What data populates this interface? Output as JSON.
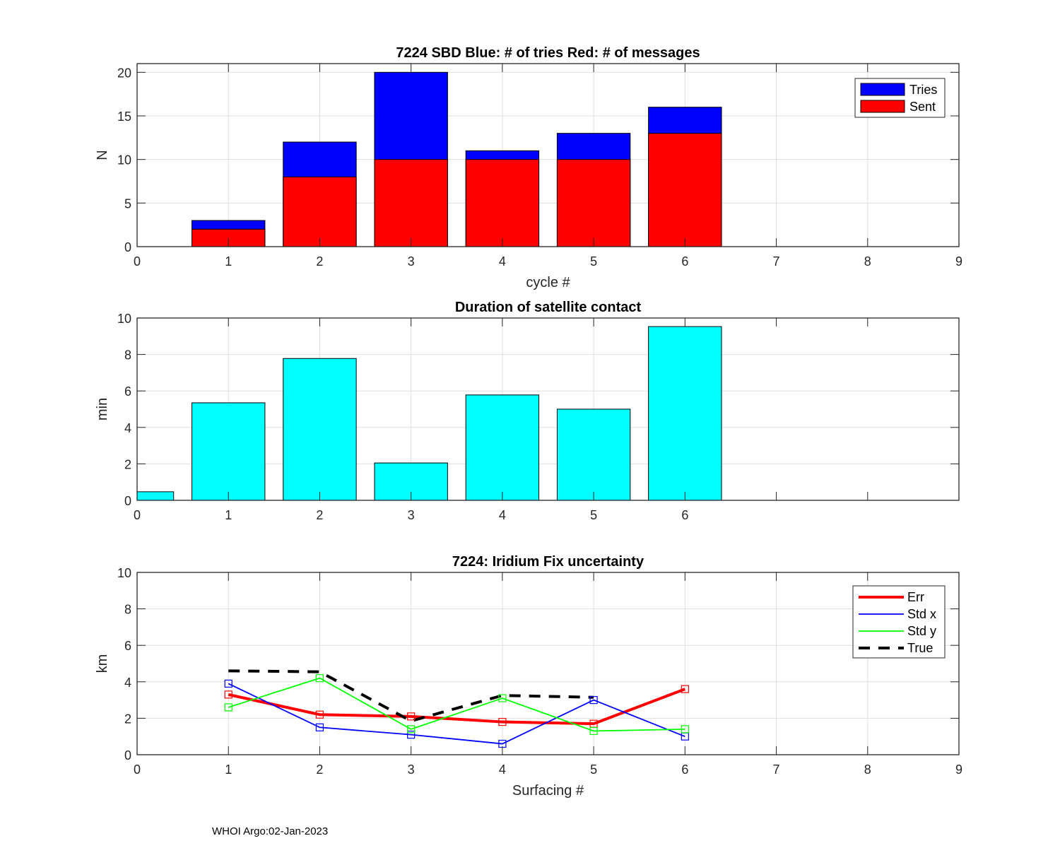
{
  "footer": "WHOI Argo:02-Jan-2023",
  "chart_data": [
    {
      "type": "bar",
      "stacked": "overlay",
      "title": "7224 SBD  Blue: # of tries   Red: # of messages",
      "xlabel": "cycle #",
      "ylabel": "N",
      "xlim": [
        0,
        9
      ],
      "ylim": [
        0,
        21
      ],
      "xticks": [
        0,
        1,
        2,
        3,
        4,
        5,
        6,
        7,
        8,
        9
      ],
      "yticks": [
        0,
        5,
        10,
        15,
        20
      ],
      "grid": true,
      "legend_position": "top-right",
      "categories": [
        1,
        2,
        3,
        4,
        5,
        6
      ],
      "series": [
        {
          "name": "Tries",
          "color": "#0000ff",
          "values": [
            3,
            12,
            20,
            11,
            13,
            16
          ]
        },
        {
          "name": "Sent",
          "color": "#ff0000",
          "values": [
            2,
            8,
            10,
            10,
            10,
            13
          ]
        }
      ]
    },
    {
      "type": "bar",
      "title": "Duration of satellite contact",
      "xlabel": "",
      "ylabel": "min",
      "xlim": [
        0,
        9
      ],
      "ylim": [
        0,
        10
      ],
      "xticks": [
        0,
        1,
        2,
        3,
        4,
        5,
        6
      ],
      "yticks": [
        0,
        2,
        4,
        6,
        8,
        10
      ],
      "grid": true,
      "color": "#00ffff",
      "categories": [
        0,
        1,
        2,
        3,
        4,
        5,
        6
      ],
      "values": [
        0.47,
        5.35,
        7.78,
        2.05,
        5.78,
        5.0,
        9.53
      ]
    },
    {
      "type": "line",
      "title": "7224: Iridium Fix uncertainty",
      "xlabel": "Surfacing #",
      "ylabel": "km",
      "xlim": [
        0,
        9
      ],
      "ylim": [
        0,
        10
      ],
      "xticks": [
        0,
        1,
        2,
        3,
        4,
        5,
        6,
        7,
        8,
        9
      ],
      "yticks": [
        0,
        2,
        4,
        6,
        8,
        10
      ],
      "grid": true,
      "legend_position": "top-right",
      "series": [
        {
          "name": "Err",
          "color": "#ff0000",
          "style": "solid-thick",
          "markers": true,
          "x": [
            1,
            2,
            3,
            4,
            5,
            6
          ],
          "values": [
            3.3,
            2.2,
            2.1,
            1.8,
            1.7,
            3.6
          ]
        },
        {
          "name": "Std x",
          "color": "#0000ff",
          "style": "solid",
          "markers": true,
          "x": [
            1,
            2,
            3,
            4,
            5,
            6
          ],
          "values": [
            3.9,
            1.5,
            1.1,
            0.6,
            3.0,
            1.0
          ]
        },
        {
          "name": "Std y",
          "color": "#00ff00",
          "style": "solid",
          "markers": true,
          "x": [
            1,
            2,
            3,
            4,
            5,
            6
          ],
          "values": [
            2.6,
            4.2,
            1.4,
            3.1,
            1.3,
            1.4
          ]
        },
        {
          "name": "True",
          "color": "#000000",
          "style": "dashed",
          "markers": false,
          "x": [
            1,
            2,
            3,
            4,
            5
          ],
          "values": [
            4.6,
            4.55,
            1.85,
            3.25,
            3.15
          ]
        }
      ]
    }
  ]
}
